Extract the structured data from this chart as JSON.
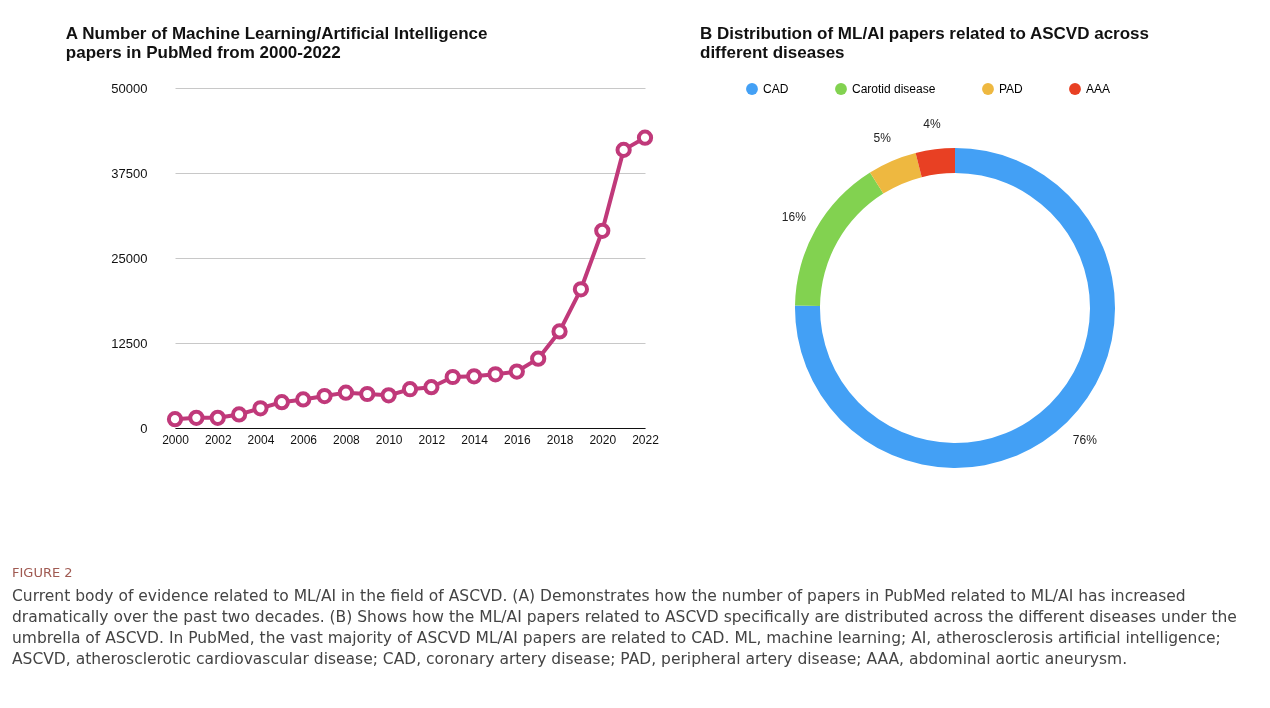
{
  "chart_data": [
    {
      "type": "line",
      "title": "A Number of Machine Learning/Artificial Intelligence papers in PubMed from 2000-2022",
      "x": [
        2000,
        2001,
        2002,
        2003,
        2004,
        2005,
        2006,
        2007,
        2008,
        2009,
        2010,
        2011,
        2012,
        2013,
        2014,
        2015,
        2016,
        2017,
        2018,
        2019,
        2020,
        2021,
        2022
      ],
      "series": [
        {
          "color": "#c0397a",
          "values": [
            1300,
            1500,
            1500,
            2000,
            2900,
            3800,
            4200,
            4700,
            5200,
            5000,
            4800,
            5700,
            6000,
            7500,
            7600,
            7900,
            8300,
            10200,
            14200,
            20400,
            29000,
            40900,
            42700
          ]
        }
      ],
      "xlim": [
        2000,
        2022
      ],
      "xticks": [
        2000,
        2002,
        2004,
        2006,
        2008,
        2010,
        2012,
        2014,
        2016,
        2018,
        2020,
        2022
      ],
      "ylim": [
        0,
        50000
      ],
      "yticks": [
        0,
        12500,
        25000,
        37500,
        50000
      ],
      "grid": "y",
      "marker": "circle",
      "line_style": "solid"
    },
    {
      "type": "donut",
      "title": "B Distribution of ML/AI papers related to ASCVD across different diseases",
      "categories": [
        "CAD",
        "Carotid disease",
        "PAD",
        "AAA"
      ],
      "values": [
        76,
        16,
        5,
        4
      ],
      "colors": [
        "#43a0f5",
        "#82d250",
        "#eeb840",
        "#e84023"
      ],
      "value_labels": [
        "76%",
        "16%",
        "5%",
        "4%"
      ],
      "legend": "top",
      "annotations": [
        "FIGURE 2",
        "Current body of evidence related to ML/AI in the field of ASCVD. (A) Demonstrates how the number of papers in PubMed related to ML/AI has increased dramatically over the past two decades. (B) Shows how the ML/AI papers related to ASCVD specifically are distributed across the different diseases under the umbrella of ASCVD. In PubMed, the vast majority of ASCVD ML/AI papers are related to CAD. ML, machine learning; AI, atherosclerosis artificial intelligence; ASCVD, atherosclerotic cardiovascular disease; CAD, coronary artery disease; PAD, peripheral artery disease; AAA, abdominal aortic aneurysm."
      ]
    }
  ]
}
